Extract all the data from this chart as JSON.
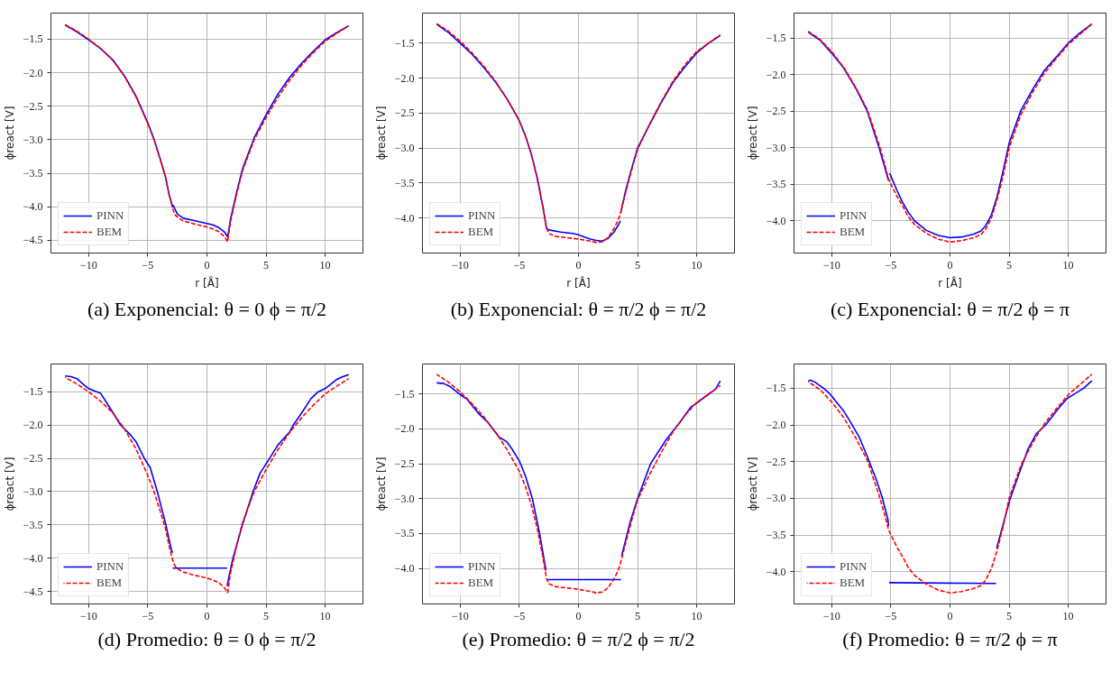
{
  "chart_data": [
    {
      "type": "line",
      "title": "(a) Exponencial: θ = 0 ϕ = π/2",
      "xlabel": "r [Å]",
      "ylabel": "ϕreact [V]",
      "xlim": [
        -13.2,
        13.2
      ],
      "ylim": [
        -4.69,
        -1.11
      ],
      "xticks": [
        -10,
        -5,
        0,
        5,
        10
      ],
      "yticks": [
        {
          "value": -4.5,
          "label": "−4.5"
        },
        {
          "value": -4,
          "label": "−4.0"
        },
        {
          "value": -3.5,
          "label": "−3.5"
        },
        {
          "value": -3,
          "label": "−3.0"
        },
        {
          "value": -2.5,
          "label": "−2.5"
        },
        {
          "value": -2,
          "label": "−2.0"
        },
        {
          "value": -1.5,
          "label": "−1.5"
        }
      ],
      "grid": true,
      "legend": "bottom left",
      "series": [
        {
          "name": "PINN",
          "color": "#0000ff",
          "line_style": "solid",
          "x": [
            -12,
            -11,
            -10,
            -9,
            -8,
            -7,
            -6,
            -5,
            -4.5,
            -4,
            -3.5,
            -3.2,
            -2.9,
            -2.85,
            -2.5,
            -2,
            -1,
            0,
            0.5,
            1,
            1.5,
            1.75,
            2,
            2.5,
            3,
            4,
            5,
            6,
            7,
            8,
            9,
            10,
            11,
            12
          ],
          "values": [
            -1.29,
            -1.39,
            -1.51,
            -1.64,
            -1.8,
            -2.04,
            -2.35,
            -2.75,
            -2.98,
            -3.26,
            -3.56,
            -3.82,
            -4.0,
            -3.98,
            -4.11,
            -4.17,
            -4.21,
            -4.25,
            -4.27,
            -4.31,
            -4.38,
            -4.45,
            -4.18,
            -3.79,
            -3.44,
            -2.97,
            -2.63,
            -2.32,
            -2.07,
            -1.86,
            -1.68,
            -1.51,
            -1.4,
            -1.3
          ]
        },
        {
          "name": "BEM",
          "color": "#ff0000",
          "line_style": "dashed",
          "x": [
            -12,
            -11,
            -10,
            -9,
            -8,
            -7,
            -6,
            -5,
            -4.5,
            -4,
            -3.5,
            -3.2,
            -2.9,
            -2.7,
            -2.4,
            -2,
            -1,
            0,
            0.5,
            1,
            1.5,
            1.75,
            2,
            2.5,
            3,
            4,
            5,
            6,
            7,
            8,
            9,
            10,
            11,
            12
          ],
          "values": [
            -1.28,
            -1.38,
            -1.5,
            -1.64,
            -1.81,
            -2.05,
            -2.36,
            -2.76,
            -2.99,
            -3.27,
            -3.56,
            -3.82,
            -4.03,
            -4.12,
            -4.17,
            -4.21,
            -4.26,
            -4.3,
            -4.33,
            -4.37,
            -4.45,
            -4.52,
            -4.22,
            -3.82,
            -3.47,
            -3.0,
            -2.67,
            -2.37,
            -2.11,
            -1.89,
            -1.7,
            -1.53,
            -1.41,
            -1.3
          ]
        }
      ]
    },
    {
      "type": "line",
      "title": "(b) Exponencial: θ = π/2 ϕ = π/2",
      "xlabel": "r [Å]",
      "ylabel": "ϕreact [V]",
      "xlim": [
        -13.2,
        13.2
      ],
      "ylim": [
        -4.5,
        -1.07
      ],
      "xticks": [
        -10,
        -5,
        0,
        5,
        10
      ],
      "yticks": [
        {
          "value": -4,
          "label": "−4.0"
        },
        {
          "value": -3.5,
          "label": "−3.5"
        },
        {
          "value": -3,
          "label": "−3.0"
        },
        {
          "value": -2.5,
          "label": "−2.5"
        },
        {
          "value": -2,
          "label": "−2.0"
        },
        {
          "value": -1.5,
          "label": "−1.5"
        }
      ],
      "grid": true,
      "legend": "bottom left",
      "series": [
        {
          "name": "PINN",
          "color": "#0000ff",
          "line_style": "solid",
          "x": [
            -12,
            -11,
            -10,
            -9,
            -8,
            -7,
            -6,
            -5,
            -4.5,
            -4,
            -3.5,
            -3,
            -2.7,
            -2.5,
            -1.5,
            -0.5,
            0,
            0.5,
            1,
            1.5,
            2,
            2.5,
            3,
            3.3,
            3.55
          ],
          "values": [
            -1.23,
            -1.35,
            -1.5,
            -1.66,
            -1.85,
            -2.06,
            -2.31,
            -2.61,
            -2.82,
            -3.08,
            -3.42,
            -3.85,
            -4.15,
            -4.17,
            -4.2,
            -4.22,
            -4.24,
            -4.27,
            -4.3,
            -4.32,
            -4.33,
            -4.29,
            -4.2,
            -4.12,
            -4.04
          ]
        },
        {
          "color": "#0000ff",
          "line_style": "solid",
          "x": [
            3.58,
            4,
            4.5,
            5,
            6,
            7,
            8,
            9,
            10,
            11,
            12
          ],
          "values": [
            -3.92,
            -3.6,
            -3.29,
            -3.0,
            -2.67,
            -2.35,
            -2.06,
            -1.84,
            -1.64,
            -1.5,
            -1.39
          ]
        },
        {
          "name": "BEM",
          "color": "#ff0000",
          "line_style": "dashed",
          "x": [
            -12,
            -11,
            -10,
            -9,
            -8,
            -7,
            -6,
            -5,
            -4.5,
            -4,
            -3.5,
            -3,
            -2.7,
            -2.5,
            -2,
            -1,
            0,
            1,
            1.5,
            2,
            2.5,
            3,
            3.3,
            3.5,
            4,
            4.5,
            5,
            6,
            7,
            8,
            9,
            10,
            11,
            12
          ],
          "values": [
            -1.22,
            -1.33,
            -1.47,
            -1.64,
            -1.83,
            -2.05,
            -2.31,
            -2.61,
            -2.82,
            -3.08,
            -3.42,
            -3.85,
            -4.15,
            -4.22,
            -4.26,
            -4.28,
            -4.3,
            -4.33,
            -4.35,
            -4.34,
            -4.28,
            -4.15,
            -4.05,
            -3.96,
            -3.63,
            -3.31,
            -3.02,
            -2.66,
            -2.34,
            -2.04,
            -1.81,
            -1.62,
            -1.5,
            -1.38
          ]
        }
      ]
    },
    {
      "type": "line",
      "title": "(c) Exponencial: θ = π/2 ϕ = π",
      "xlabel": "r [Å]",
      "ylabel": "ϕreact [V]",
      "xlim": [
        -13.2,
        13.2
      ],
      "ylim": [
        -4.44,
        -1.16
      ],
      "xticks": [
        -10,
        -5,
        0,
        5,
        10
      ],
      "yticks": [
        {
          "value": -4,
          "label": "−4.0"
        },
        {
          "value": -3.5,
          "label": "−3.5"
        },
        {
          "value": -3,
          "label": "−3.0"
        },
        {
          "value": -2.5,
          "label": "−2.5"
        },
        {
          "value": -2,
          "label": "−2.0"
        },
        {
          "value": -1.5,
          "label": "−1.5"
        }
      ],
      "grid": true,
      "legend": "bottom left",
      "series": [
        {
          "name": "PINN",
          "color": "#0000ff",
          "line_style": "solid",
          "x": [
            -12,
            -11,
            -10,
            -9,
            -8,
            -7,
            -6,
            -5.5,
            -5.2
          ],
          "values": [
            -1.42,
            -1.53,
            -1.71,
            -1.91,
            -2.18,
            -2.5,
            -3.0,
            -3.28,
            -3.45
          ]
        },
        {
          "color": "#0000ff",
          "line_style": "solid",
          "x": [
            -5.1,
            -4.5,
            -4,
            -3.5,
            -3,
            -2,
            -1,
            0,
            1,
            2,
            2.6,
            3,
            3.5,
            4,
            4.5,
            5,
            6,
            7,
            8,
            9,
            10,
            11,
            12
          ],
          "values": [
            -3.35,
            -3.58,
            -3.75,
            -3.89,
            -4.0,
            -4.13,
            -4.2,
            -4.23,
            -4.22,
            -4.18,
            -4.14,
            -4.07,
            -3.92,
            -3.66,
            -3.31,
            -2.94,
            -2.49,
            -2.2,
            -1.94,
            -1.76,
            -1.57,
            -1.43,
            -1.31
          ]
        },
        {
          "name": "BEM",
          "color": "#ff0000",
          "line_style": "dashed",
          "x": [
            -12,
            -11,
            -10,
            -9,
            -8,
            -7,
            -6,
            -5.5,
            -5.2,
            -5,
            -4.5,
            -4,
            -3.5,
            -3,
            -2,
            -1,
            0,
            1,
            2,
            2.6,
            3,
            3.5,
            4,
            4.5,
            5,
            6,
            7,
            8,
            9,
            10,
            11,
            12
          ],
          "values": [
            -1.41,
            -1.52,
            -1.69,
            -1.9,
            -2.17,
            -2.48,
            -2.96,
            -3.24,
            -3.43,
            -3.5,
            -3.66,
            -3.8,
            -3.95,
            -4.05,
            -4.17,
            -4.25,
            -4.29,
            -4.27,
            -4.23,
            -4.19,
            -4.12,
            -3.96,
            -3.7,
            -3.38,
            -3.0,
            -2.55,
            -2.24,
            -1.98,
            -1.78,
            -1.59,
            -1.45,
            -1.31
          ]
        }
      ]
    },
    {
      "type": "line",
      "title": "(d) Promedio: θ = 0 ϕ = π/2",
      "ylabel": "ϕreact [V]",
      "xlim": [
        -13.2,
        13.2
      ],
      "ylim": [
        -4.69,
        -1.08
      ],
      "xticks": [
        -10,
        -5,
        0,
        5,
        10
      ],
      "yticks": [
        {
          "value": -4.5,
          "label": "−4.5"
        },
        {
          "value": -4,
          "label": "−4.0"
        },
        {
          "value": -3.5,
          "label": "−3.5"
        },
        {
          "value": -3,
          "label": "−3.0"
        },
        {
          "value": -2.5,
          "label": "−2.5"
        },
        {
          "value": -2,
          "label": "−2.0"
        },
        {
          "value": -1.5,
          "label": "−1.5"
        }
      ],
      "grid": true,
      "legend": "bottom left",
      "series": [
        {
          "name": "PINN",
          "color": "#0000ff",
          "line_style": "solid",
          "x": [
            -12,
            -11.5,
            -11,
            -10.5,
            -10,
            -9,
            -8,
            -7.3,
            -6.5,
            -6,
            -5.3,
            -4.8,
            -4.2,
            -3.5,
            -3,
            -2.9
          ],
          "values": [
            -1.26,
            -1.27,
            -1.3,
            -1.38,
            -1.45,
            -1.52,
            -1.8,
            -2.0,
            -2.14,
            -2.25,
            -2.5,
            -2.64,
            -3.0,
            -3.48,
            -3.88,
            -3.92
          ]
        },
        {
          "color": "#0000ff",
          "line_style": "solid",
          "x": [
            -2.9,
            1.7
          ],
          "values": [
            -4.15,
            -4.15
          ]
        },
        {
          "color": "#0000ff",
          "line_style": "solid",
          "x": [
            1.7,
            2.2,
            3,
            3.9,
            4.5,
            5.3,
            6,
            7,
            7.3,
            8,
            8.8,
            9.4,
            10,
            10.5,
            11,
            11.5,
            12
          ],
          "values": [
            -4.42,
            -4.0,
            -3.5,
            -3.0,
            -2.72,
            -2.5,
            -2.3,
            -2.1,
            -2.0,
            -1.82,
            -1.6,
            -1.5,
            -1.45,
            -1.38,
            -1.31,
            -1.27,
            -1.24
          ]
        },
        {
          "name": "BEM",
          "color": "#ff0000",
          "line_style": "dashed",
          "x": [
            -12,
            -11,
            -10,
            -9,
            -8,
            -7,
            -6,
            -5,
            -4.5,
            -4,
            -3.5,
            -3.2,
            -2.9,
            -2.7,
            -2.4,
            -2,
            -1,
            0,
            0.5,
            1,
            1.5,
            1.75,
            2,
            2.5,
            3,
            4,
            5,
            6,
            7,
            8,
            9,
            10,
            11,
            12
          ],
          "values": [
            -1.28,
            -1.38,
            -1.5,
            -1.64,
            -1.81,
            -2.05,
            -2.36,
            -2.76,
            -2.99,
            -3.27,
            -3.56,
            -3.82,
            -4.03,
            -4.12,
            -4.17,
            -4.21,
            -4.26,
            -4.3,
            -4.33,
            -4.37,
            -4.45,
            -4.52,
            -4.22,
            -3.82,
            -3.47,
            -3.0,
            -2.67,
            -2.37,
            -2.11,
            -1.89,
            -1.7,
            -1.53,
            -1.41,
            -1.3
          ]
        }
      ]
    },
    {
      "type": "line",
      "title": "(e) Promedio: θ = π/2 ϕ = π/2",
      "ylabel": "ϕreact [V]",
      "xlim": [
        -13.2,
        13.2
      ],
      "ylim": [
        -4.51,
        -1.07
      ],
      "xticks": [
        -10,
        -5,
        0,
        5,
        10
      ],
      "yticks": [
        {
          "value": -4,
          "label": "−4.0"
        },
        {
          "value": -3.5,
          "label": "−3.5"
        },
        {
          "value": -3,
          "label": "−3.0"
        },
        {
          "value": -2.5,
          "label": "−2.5"
        },
        {
          "value": -2,
          "label": "−2.0"
        },
        {
          "value": -1.5,
          "label": "−1.5"
        }
      ],
      "grid": true,
      "legend": "bottom left",
      "series": [
        {
          "name": "PINN",
          "color": "#0000ff",
          "line_style": "solid",
          "x": [
            -12,
            -11.4,
            -10.9,
            -10,
            -9.4,
            -8.4,
            -7.7,
            -6.7,
            -6.1,
            -5.7,
            -5,
            -4.5,
            -3.9,
            -3.3,
            -2.75
          ],
          "values": [
            -1.34,
            -1.35,
            -1.39,
            -1.51,
            -1.58,
            -1.79,
            -1.9,
            -2.12,
            -2.18,
            -2.27,
            -2.46,
            -2.67,
            -3.0,
            -3.49,
            -4.03
          ]
        },
        {
          "color": "#0000ff",
          "line_style": "solid",
          "x": [
            -2.65,
            3.6
          ],
          "values": [
            -4.16,
            -4.16
          ]
        },
        {
          "color": "#0000ff",
          "line_style": "solid",
          "x": [
            3.65,
            4.4,
            5,
            6.1,
            7.4,
            8.6,
            9.5,
            10,
            10.8,
            11.6,
            12
          ],
          "values": [
            -3.82,
            -3.32,
            -3.0,
            -2.5,
            -2.16,
            -1.9,
            -1.69,
            -1.63,
            -1.53,
            -1.43,
            -1.31
          ]
        },
        {
          "name": "BEM",
          "color": "#ff0000",
          "line_style": "dashed",
          "x": [
            -12,
            -11,
            -10,
            -9,
            -8,
            -7,
            -6,
            -5,
            -4.5,
            -4,
            -3.5,
            -3,
            -2.7,
            -2.5,
            -2,
            -1,
            0,
            1,
            1.5,
            2,
            2.5,
            3,
            3.3,
            3.5,
            4,
            4.5,
            5,
            6,
            7,
            8,
            9,
            10,
            11,
            12
          ],
          "values": [
            -1.22,
            -1.33,
            -1.47,
            -1.64,
            -1.83,
            -2.05,
            -2.31,
            -2.61,
            -2.82,
            -3.08,
            -3.42,
            -3.85,
            -4.15,
            -4.22,
            -4.26,
            -4.28,
            -4.3,
            -4.33,
            -4.35,
            -4.34,
            -4.28,
            -4.15,
            -4.05,
            -3.96,
            -3.63,
            -3.31,
            -3.02,
            -2.66,
            -2.34,
            -2.04,
            -1.81,
            -1.62,
            -1.5,
            -1.38
          ]
        }
      ]
    },
    {
      "type": "line",
      "title": "(f) Promedio: θ = π/2 ϕ = π",
      "ylabel": "ϕreact [V]",
      "xlim": [
        -13.2,
        13.2
      ],
      "ylim": [
        -4.44,
        -1.17
      ],
      "xticks": [
        -10,
        -5,
        0,
        5,
        10
      ],
      "yticks": [
        {
          "value": -4,
          "label": "−4.0"
        },
        {
          "value": -3.5,
          "label": "−3.5"
        },
        {
          "value": -3,
          "label": "−3.0"
        },
        {
          "value": -2.5,
          "label": "−2.5"
        },
        {
          "value": -2,
          "label": "−2.0"
        },
        {
          "value": -1.5,
          "label": "−1.5"
        }
      ],
      "grid": true,
      "legend": "bottom left",
      "series": [
        {
          "name": "PINN",
          "color": "#0000ff",
          "line_style": "solid",
          "x": [
            -12,
            -11.8,
            -11.4,
            -10.7,
            -10.2,
            -9.7,
            -9,
            -8.5,
            -7.7,
            -7,
            -6.25,
            -5.75,
            -5.25,
            -5.2
          ],
          "values": [
            -1.4,
            -1.39,
            -1.42,
            -1.5,
            -1.57,
            -1.67,
            -1.81,
            -1.94,
            -2.16,
            -2.43,
            -2.74,
            -2.98,
            -3.29,
            -3.38
          ]
        },
        {
          "color": "#0000ff",
          "line_style": "solid",
          "x": [
            -5.15,
            3.9
          ],
          "values": [
            -4.15,
            -4.16
          ]
        },
        {
          "color": "#0000ff",
          "line_style": "solid",
          "x": [
            3.95,
            4.5,
            5.1,
            5.85,
            6.6,
            7.3,
            8.1,
            9.1,
            9.9,
            10.5,
            11.3,
            12
          ],
          "values": [
            -3.68,
            -3.35,
            -3.0,
            -2.66,
            -2.33,
            -2.12,
            -2.0,
            -1.79,
            -1.64,
            -1.58,
            -1.5,
            -1.4
          ]
        },
        {
          "name": "BEM",
          "color": "#ff0000",
          "line_style": "dashed",
          "x": [
            -12,
            -11,
            -10,
            -9,
            -8,
            -7,
            -6,
            -5.5,
            -5.2,
            -5,
            -4.5,
            -4,
            -3.5,
            -3,
            -2,
            -1,
            0,
            1,
            2,
            2.6,
            3,
            3.5,
            4,
            4.5,
            5,
            6,
            7,
            8,
            9,
            10,
            11,
            12
          ],
          "values": [
            -1.41,
            -1.52,
            -1.69,
            -1.9,
            -2.17,
            -2.48,
            -2.96,
            -3.24,
            -3.43,
            -3.5,
            -3.66,
            -3.8,
            -3.95,
            -4.05,
            -4.17,
            -4.25,
            -4.29,
            -4.27,
            -4.23,
            -4.19,
            -4.12,
            -3.96,
            -3.7,
            -3.38,
            -3.0,
            -2.55,
            -2.24,
            -1.98,
            -1.78,
            -1.59,
            -1.45,
            -1.31
          ]
        }
      ]
    }
  ]
}
